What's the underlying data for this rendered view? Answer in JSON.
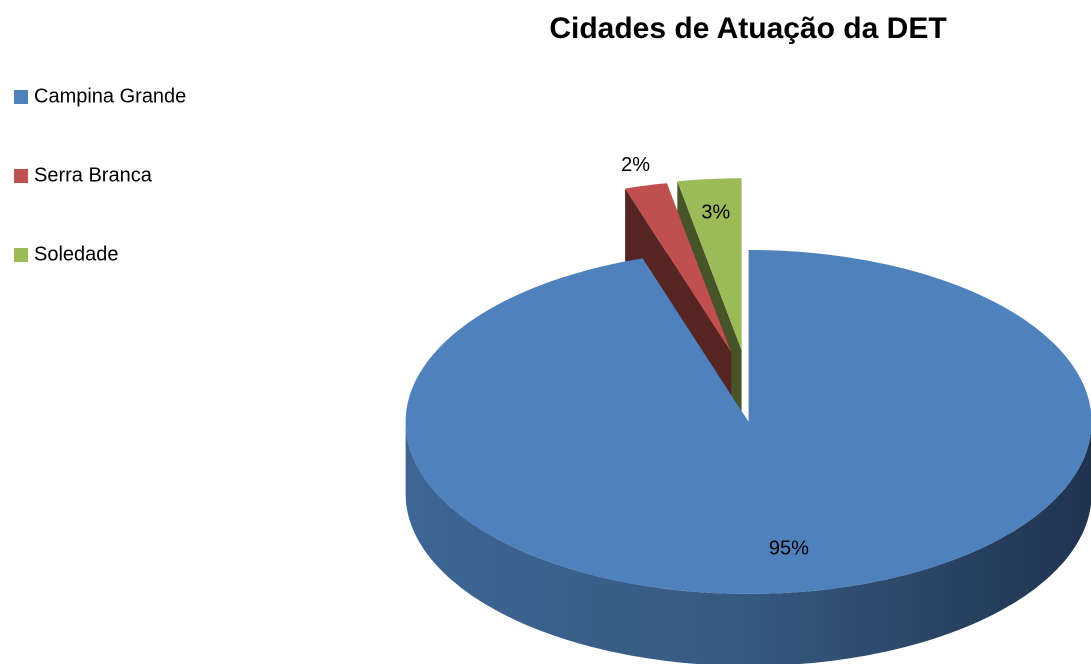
{
  "chart_data": {
    "type": "pie",
    "title": "Cidades de Atuação da DET",
    "categories": [
      "Campina Grande",
      "Serra Branca",
      "Soledade"
    ],
    "values": [
      95,
      2,
      3
    ],
    "value_labels": [
      "95%",
      "2%",
      "3%"
    ],
    "colors": [
      "#4f81bd",
      "#c0504d",
      "#9bbb59"
    ],
    "legend": "left",
    "three_d": true
  }
}
